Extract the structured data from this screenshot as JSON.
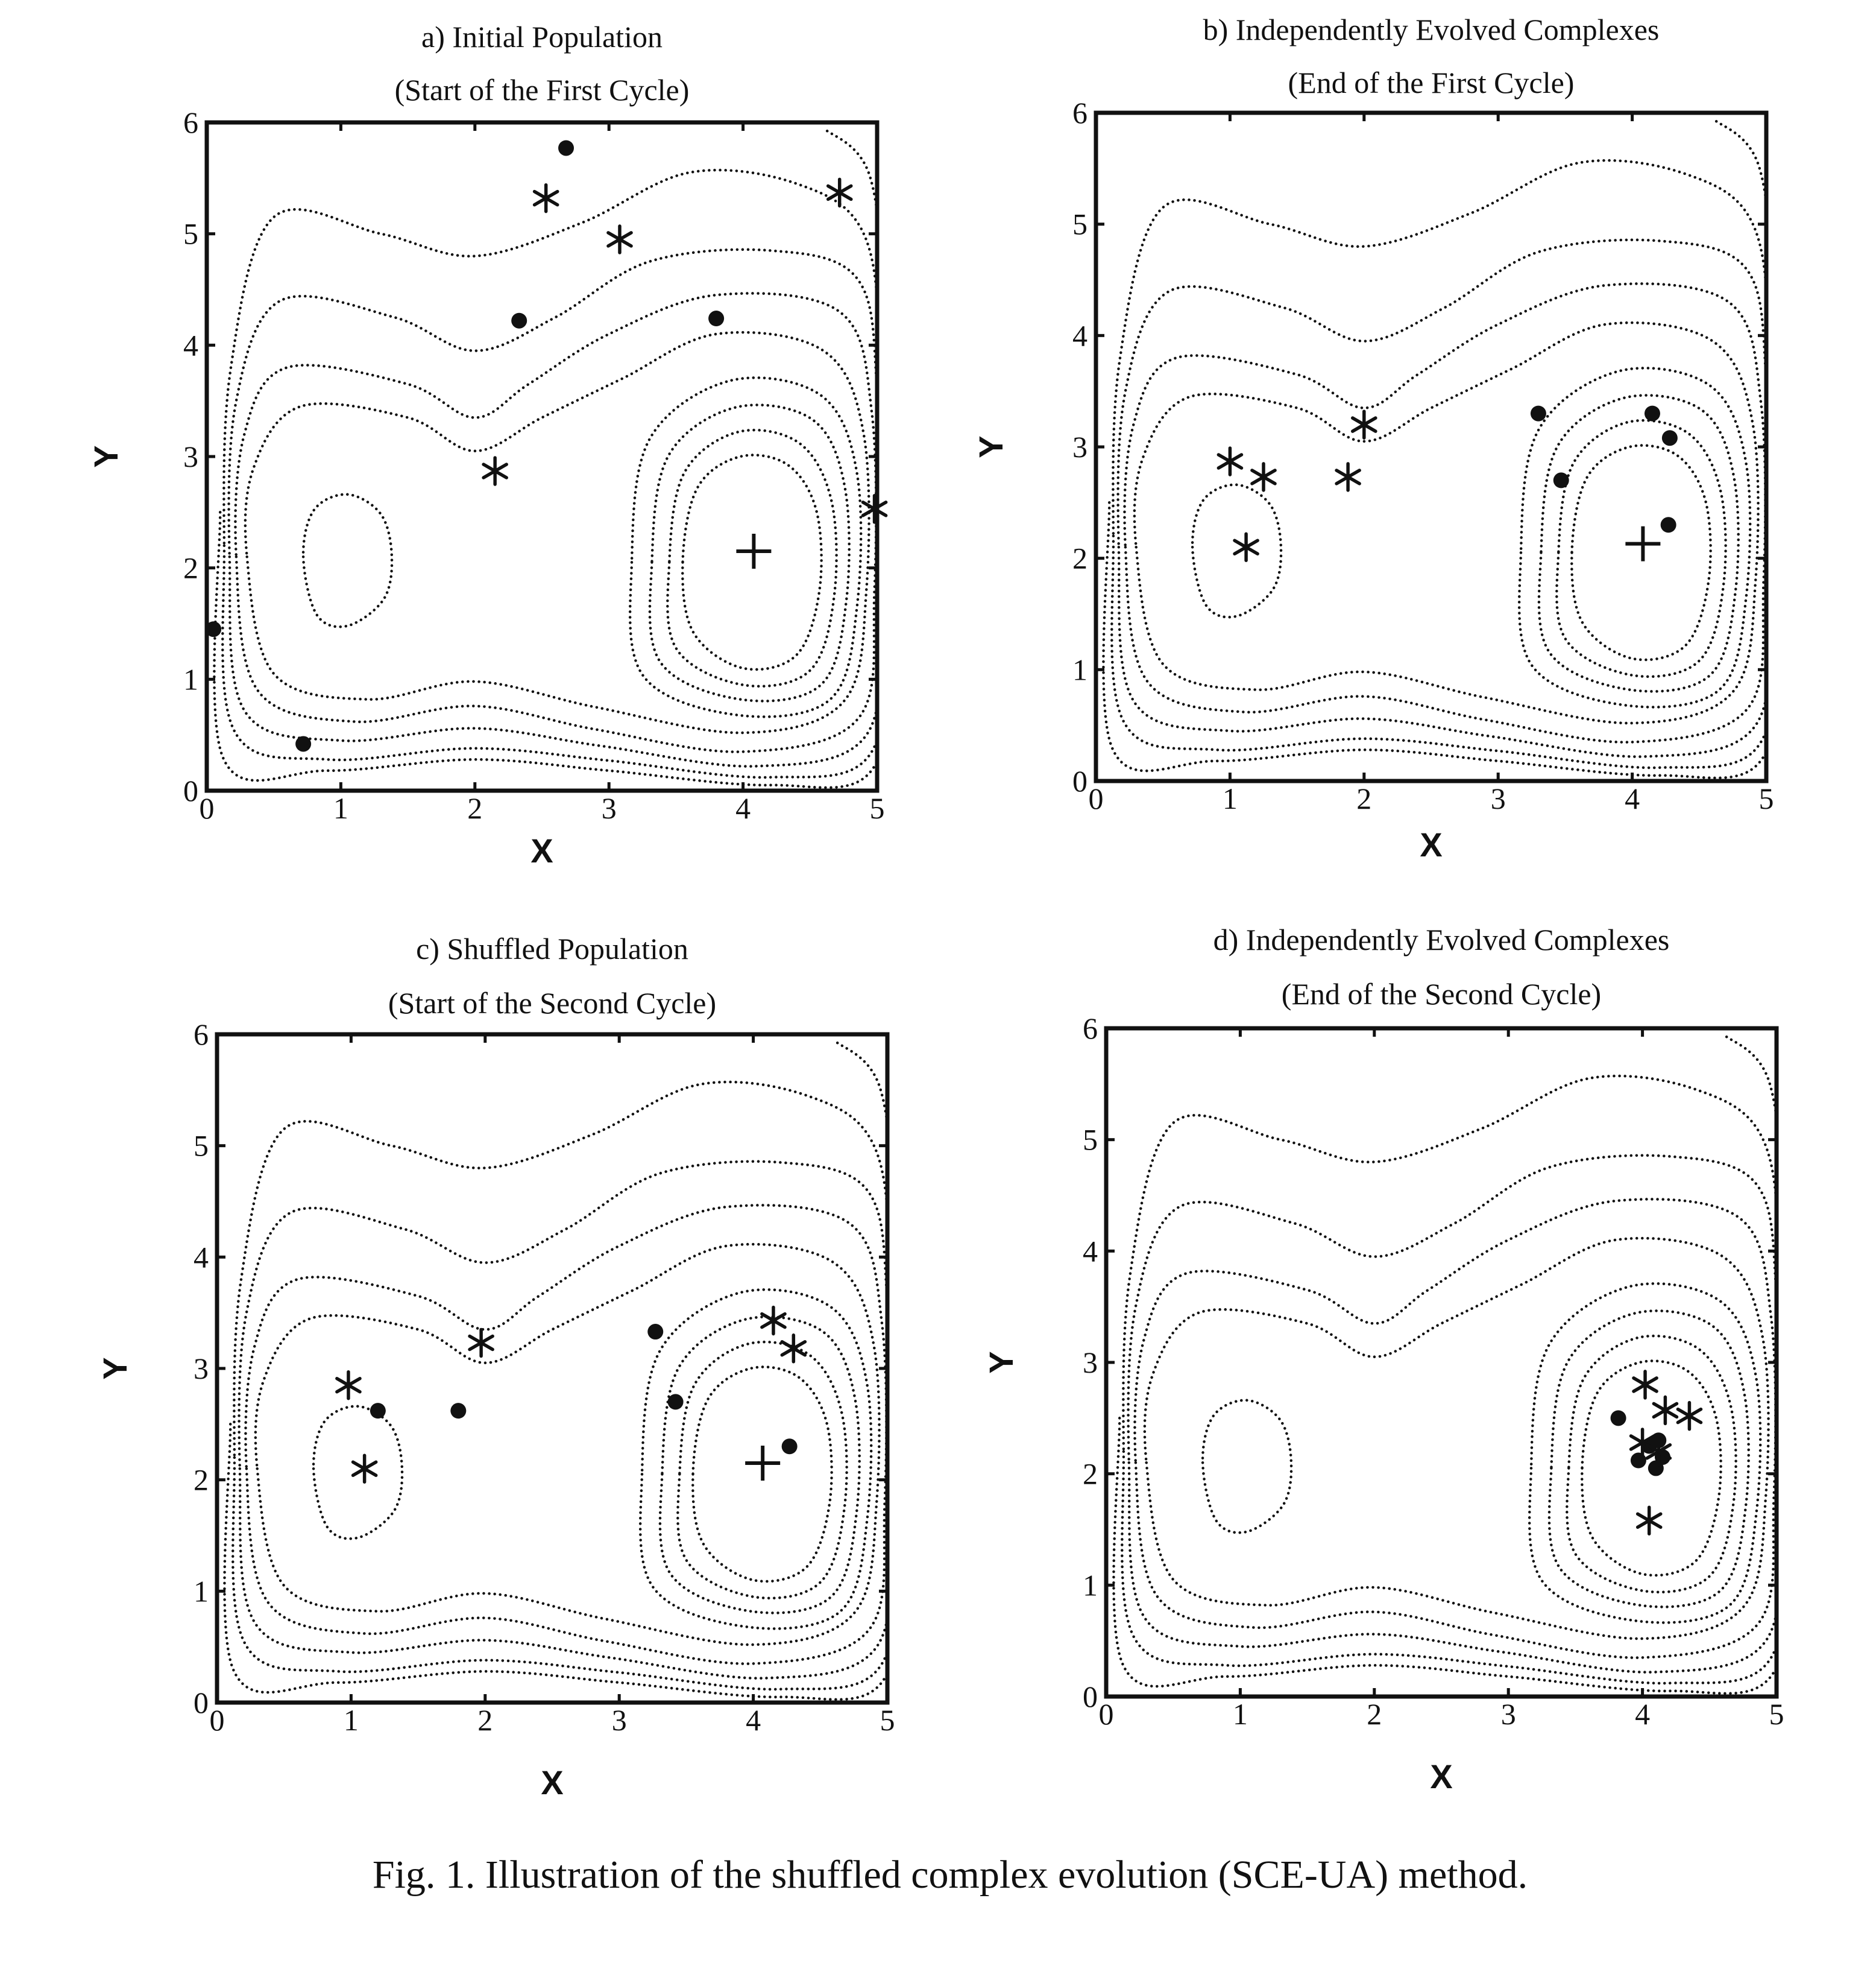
{
  "figure": {
    "caption": "Fig. 1. Illustration of the shuffled complex evolution (SCE-UA) method."
  },
  "chart_data": [
    {
      "type": "scatter",
      "panel": "a",
      "title": "a) Initial Population",
      "subtitle": "(Start of the First Cycle)",
      "xlabel": "X",
      "ylabel": "Y",
      "xlim": [
        0,
        5
      ],
      "ylim": [
        0,
        6
      ],
      "xticks": [
        0,
        1,
        2,
        3,
        4,
        5
      ],
      "yticks": [
        0,
        1,
        2,
        3,
        4,
        5,
        6
      ],
      "contours": true,
      "series": [
        {
          "marker": "dot",
          "points": [
            [
              2.68,
              5.77
            ],
            [
              2.33,
              4.22
            ],
            [
              3.8,
              4.24
            ],
            [
              0.05,
              1.45
            ],
            [
              0.72,
              0.42
            ]
          ]
        },
        {
          "marker": "star",
          "points": [
            [
              2.53,
              5.32
            ],
            [
              3.08,
              4.95
            ],
            [
              4.72,
              5.37
            ],
            [
              2.15,
              2.87
            ],
            [
              4.98,
              2.53
            ]
          ]
        },
        {
          "marker": "plus",
          "points": [
            [
              4.08,
              2.15
            ]
          ]
        }
      ]
    },
    {
      "type": "scatter",
      "panel": "b",
      "title": "b) Independently Evolved Complexes",
      "subtitle": "(End of the First Cycle)",
      "xlabel": "X",
      "ylabel": "Y",
      "xlim": [
        0,
        5
      ],
      "ylim": [
        0,
        6
      ],
      "xticks": [
        0,
        1,
        2,
        3,
        4,
        5
      ],
      "yticks": [
        0,
        1,
        2,
        3,
        4,
        5,
        6
      ],
      "contours": true,
      "series": [
        {
          "marker": "dot",
          "points": [
            [
              3.3,
              3.3
            ],
            [
              4.15,
              3.3
            ],
            [
              4.28,
              3.08
            ],
            [
              3.47,
              2.7
            ],
            [
              4.27,
              2.3
            ]
          ]
        },
        {
          "marker": "star",
          "points": [
            [
              1.0,
              2.87
            ],
            [
              1.25,
              2.73
            ],
            [
              1.12,
              2.1
            ],
            [
              1.88,
              2.73
            ],
            [
              2.0,
              3.2
            ]
          ]
        },
        {
          "marker": "plus",
          "points": [
            [
              4.08,
              2.13
            ]
          ]
        }
      ]
    },
    {
      "type": "scatter",
      "panel": "c",
      "title": "c)  Shuffled Population",
      "subtitle": "(Start of the Second Cycle)",
      "xlabel": "X",
      "ylabel": "Y",
      "xlim": [
        0,
        5
      ],
      "ylim": [
        0,
        6
      ],
      "xticks": [
        0,
        1,
        2,
        3,
        4,
        5
      ],
      "yticks": [
        0,
        1,
        2,
        3,
        4,
        5,
        6
      ],
      "contours": true,
      "series": [
        {
          "marker": "dot",
          "points": [
            [
              1.2,
              2.62
            ],
            [
              1.8,
              2.62
            ],
            [
              3.27,
              3.33
            ],
            [
              3.42,
              2.7
            ],
            [
              4.27,
              2.3
            ]
          ]
        },
        {
          "marker": "star",
          "points": [
            [
              0.98,
              2.85
            ],
            [
              1.1,
              2.1
            ],
            [
              1.97,
              3.23
            ],
            [
              4.15,
              3.43
            ],
            [
              4.3,
              3.18
            ]
          ]
        },
        {
          "marker": "plus",
          "points": [
            [
              4.07,
              2.15
            ]
          ]
        }
      ]
    },
    {
      "type": "scatter",
      "panel": "d",
      "title": "d) Independently Evolved Complexes",
      "subtitle": "(End of the Second Cycle)",
      "xlabel": "X",
      "ylabel": "Y",
      "xlim": [
        0,
        5
      ],
      "ylim": [
        0,
        6
      ],
      "xticks": [
        0,
        1,
        2,
        3,
        4,
        5
      ],
      "yticks": [
        0,
        1,
        2,
        3,
        4,
        5,
        6
      ],
      "contours": true,
      "series": [
        {
          "marker": "dot",
          "points": [
            [
              3.82,
              2.5
            ],
            [
              3.97,
              2.12
            ],
            [
              4.05,
              2.25
            ],
            [
              4.12,
              2.3
            ],
            [
              4.1,
              2.05
            ],
            [
              4.15,
              2.15
            ]
          ]
        },
        {
          "marker": "star",
          "points": [
            [
              4.02,
              2.8
            ],
            [
              4.17,
              2.57
            ],
            [
              4.35,
              2.52
            ],
            [
              4.0,
              2.28
            ],
            [
              4.12,
              2.2
            ],
            [
              4.05,
              1.58
            ]
          ]
        }
      ]
    }
  ]
}
